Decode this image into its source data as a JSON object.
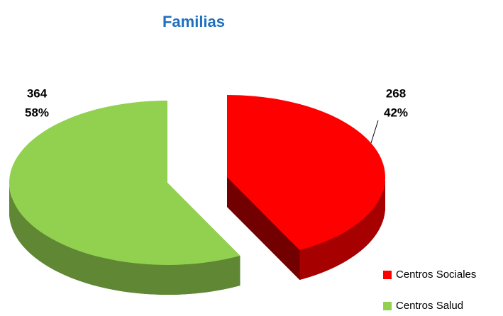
{
  "chart_data": {
    "type": "pie",
    "title": "Familias",
    "categories": [
      "Centros Sociales",
      "Centros Salud"
    ],
    "values": [
      268,
      364
    ],
    "percent_labels": [
      "42%",
      "58%"
    ],
    "colors": [
      "#ff0000",
      "#92d050"
    ],
    "legend": "bottom-right"
  }
}
